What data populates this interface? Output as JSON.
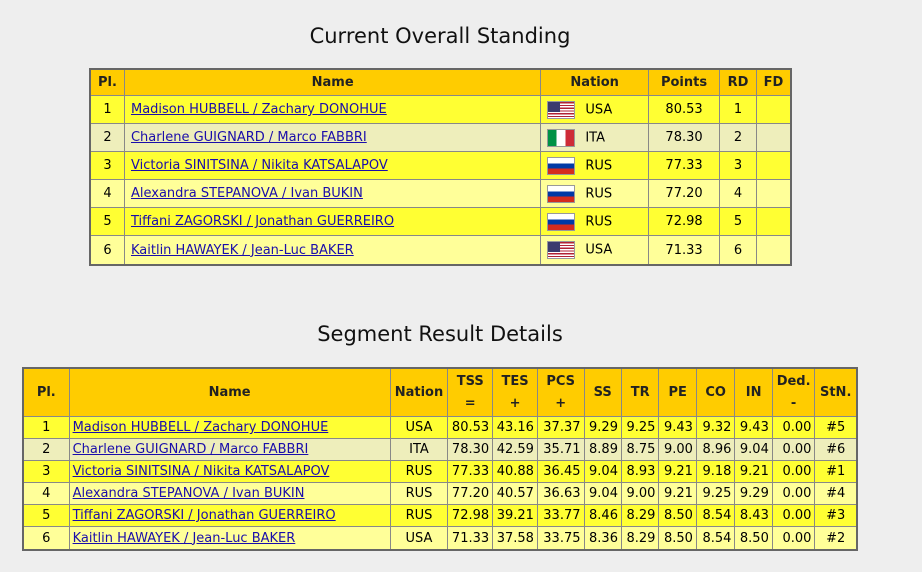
{
  "overall": {
    "title": "Current Overall Standing",
    "headers": {
      "pl": "Pl.",
      "name": "Name",
      "nation": "Nation",
      "points": "Points",
      "rd": "RD",
      "fd": "FD"
    },
    "rows": [
      {
        "pl": "1",
        "name": "Madison HUBBELL / Zachary DONOHUE",
        "flag": "flag-usa-icon",
        "nation": "USA",
        "points": "80.53",
        "rd": "1",
        "fd": ""
      },
      {
        "pl": "2",
        "name": "Charlene GUIGNARD / Marco FABBRI",
        "flag": "flag-ita-icon",
        "nation": "ITA",
        "points": "78.30",
        "rd": "2",
        "fd": ""
      },
      {
        "pl": "3",
        "name": "Victoria SINITSINA / Nikita KATSALAPOV",
        "flag": "flag-rus-icon",
        "nation": "RUS",
        "points": "77.33",
        "rd": "3",
        "fd": ""
      },
      {
        "pl": "4",
        "name": "Alexandra STEPANOVA / Ivan BUKIN",
        "flag": "flag-rus-icon",
        "nation": "RUS",
        "points": "77.20",
        "rd": "4",
        "fd": ""
      },
      {
        "pl": "5",
        "name": "Tiffani ZAGORSKI / Jonathan GUERREIRO",
        "flag": "flag-rus-icon",
        "nation": "RUS",
        "points": "72.98",
        "rd": "5",
        "fd": ""
      },
      {
        "pl": "6",
        "name": "Kaitlin HAWAYEK / Jean-Luc BAKER",
        "flag": "flag-usa-icon",
        "nation": "USA",
        "points": "71.33",
        "rd": "6",
        "fd": ""
      }
    ]
  },
  "segment": {
    "title": "Segment Result Details",
    "headers": {
      "pl": "Pl.",
      "name": "Name",
      "nation": "Nation",
      "tss1": "TSS",
      "tss2": "=",
      "tes1": "TES",
      "tes2": "+",
      "pcs1": "PCS",
      "pcs2": "+",
      "ss": "SS",
      "tr": "TR",
      "pe": "PE",
      "co": "CO",
      "in": "IN",
      "ded1": "Ded.",
      "ded2": "-",
      "stn": "StN."
    },
    "rows": [
      {
        "pl": "1",
        "name": "Madison HUBBELL / Zachary DONOHUE",
        "nation": "USA",
        "tss": "80.53",
        "tes": "43.16",
        "pcs": "37.37",
        "ss": "9.29",
        "tr": "9.25",
        "pe": "9.43",
        "co": "9.32",
        "in": "9.43",
        "ded": "0.00",
        "stn": "#5"
      },
      {
        "pl": "2",
        "name": "Charlene GUIGNARD / Marco FABBRI",
        "nation": "ITA",
        "tss": "78.30",
        "tes": "42.59",
        "pcs": "35.71",
        "ss": "8.89",
        "tr": "8.75",
        "pe": "9.00",
        "co": "8.96",
        "in": "9.04",
        "ded": "0.00",
        "stn": "#6"
      },
      {
        "pl": "3",
        "name": "Victoria SINITSINA / Nikita KATSALAPOV",
        "nation": "RUS",
        "tss": "77.33",
        "tes": "40.88",
        "pcs": "36.45",
        "ss": "9.04",
        "tr": "8.93",
        "pe": "9.21",
        "co": "9.18",
        "in": "9.21",
        "ded": "0.00",
        "stn": "#1"
      },
      {
        "pl": "4",
        "name": "Alexandra STEPANOVA / Ivan BUKIN",
        "nation": "RUS",
        "tss": "77.20",
        "tes": "40.57",
        "pcs": "36.63",
        "ss": "9.04",
        "tr": "9.00",
        "pe": "9.21",
        "co": "9.25",
        "in": "9.29",
        "ded": "0.00",
        "stn": "#4"
      },
      {
        "pl": "5",
        "name": "Tiffani ZAGORSKI / Jonathan GUERREIRO",
        "nation": "RUS",
        "tss": "72.98",
        "tes": "39.21",
        "pcs": "33.77",
        "ss": "8.46",
        "tr": "8.29",
        "pe": "8.50",
        "co": "8.54",
        "in": "8.43",
        "ded": "0.00",
        "stn": "#3"
      },
      {
        "pl": "6",
        "name": "Kaitlin HAWAYEK / Jean-Luc BAKER",
        "nation": "USA",
        "tss": "71.33",
        "tes": "37.58",
        "pcs": "33.75",
        "ss": "8.36",
        "tr": "8.29",
        "pe": "8.50",
        "co": "8.54",
        "in": "8.50",
        "ded": "0.00",
        "stn": "#2"
      }
    ]
  },
  "colors": {
    "header": "#ffcc00",
    "row_yellow": "#ffff33",
    "row_gray": "#eeeebb",
    "row_light": "#ffff99",
    "link": "#1a0dab"
  }
}
